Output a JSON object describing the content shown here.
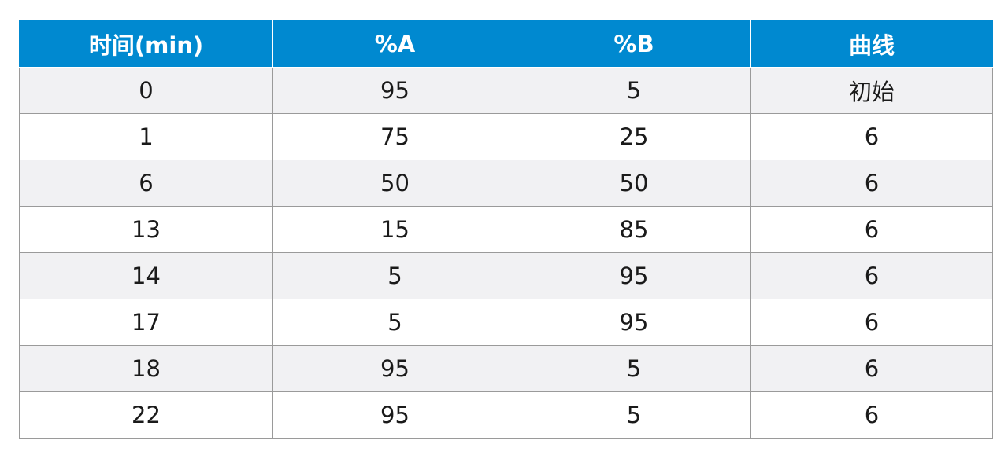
{
  "table": {
    "headers": [
      "时间(min)",
      "%A",
      "%B",
      "曲线"
    ],
    "rows": [
      [
        "0",
        "95",
        "5",
        "初始"
      ],
      [
        "1",
        "75",
        "25",
        "6"
      ],
      [
        "6",
        "50",
        "50",
        "6"
      ],
      [
        "13",
        "15",
        "85",
        "6"
      ],
      [
        "14",
        "5",
        "95",
        "6"
      ],
      [
        "17",
        "5",
        "95",
        "6"
      ],
      [
        "18",
        "95",
        "5",
        "6"
      ],
      [
        "22",
        "95",
        "5",
        "6"
      ]
    ]
  },
  "colors": {
    "header_bg": "#0089d0",
    "header_text": "#ffffff",
    "row_alt_bg": "#f1f1f3",
    "row_bg": "#ffffff",
    "border": "#9a9a9a"
  }
}
